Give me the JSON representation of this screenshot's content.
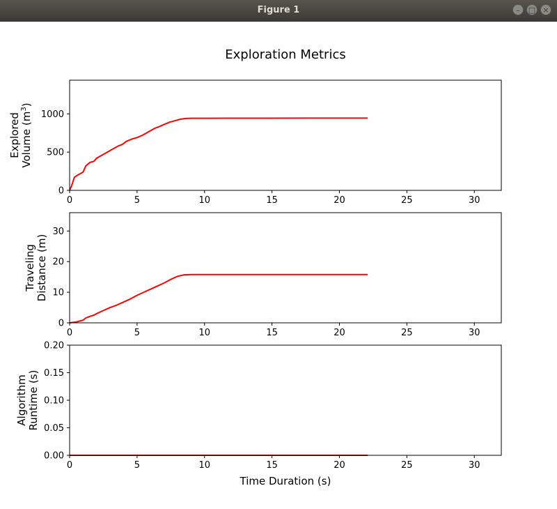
{
  "window": {
    "title": "Figure 1",
    "buttons": {
      "minimize": "–",
      "maximize": "□",
      "close": "×"
    }
  },
  "figure": {
    "suptitle": "Exploration Metrics",
    "line_color": "#ff0000"
  },
  "chart_data": [
    {
      "type": "line",
      "title": "",
      "xlabel": "",
      "ylabel_lines": [
        "Explored",
        "Volume (m"
      ],
      "ylabel_superscript": "3",
      "ylabel_suffix": ")",
      "xlim": [
        0,
        32
      ],
      "ylim": [
        0,
        1440
      ],
      "xticks": [
        0,
        5,
        10,
        15,
        20,
        25,
        30
      ],
      "yticks": [
        0,
        500,
        1000
      ],
      "grid": false,
      "series": [
        {
          "x": [
            0,
            0.15,
            0.35,
            0.6,
            1.0,
            1.2,
            1.5,
            1.8,
            2.0,
            2.4,
            2.8,
            3.2,
            3.6,
            3.9,
            4.2,
            4.6,
            5.0,
            5.4,
            5.7,
            6.0,
            6.3,
            6.6,
            7.0,
            7.4,
            7.8,
            8.2,
            8.6,
            9.0,
            10,
            12,
            15,
            18,
            20,
            22.1
          ],
          "y": [
            0,
            60,
            170,
            200,
            240,
            320,
            365,
            380,
            420,
            460,
            500,
            540,
            580,
            600,
            640,
            670,
            690,
            720,
            750,
            780,
            810,
            830,
            860,
            890,
            910,
            930,
            940,
            942,
            942,
            943,
            943,
            944,
            944,
            944
          ]
        }
      ]
    },
    {
      "type": "line",
      "title": "",
      "xlabel": "",
      "ylabel_lines": [
        "Traveling",
        "Distance (m)"
      ],
      "xlim": [
        0,
        32
      ],
      "ylim": [
        0,
        36
      ],
      "xticks": [
        0,
        5,
        10,
        15,
        20,
        25,
        30
      ],
      "yticks": [
        0,
        10,
        20,
        30
      ],
      "grid": false,
      "series": [
        {
          "x": [
            0,
            0.5,
            1.0,
            1.2,
            1.5,
            1.8,
            2.0,
            2.5,
            3.0,
            3.5,
            4.0,
            4.5,
            5.0,
            5.5,
            6.0,
            6.5,
            7.0,
            7.5,
            8.0,
            8.5,
            9.0,
            12,
            15,
            18,
            22.1
          ],
          "y": [
            0,
            0.3,
            0.9,
            1.6,
            2.1,
            2.5,
            3.0,
            4.0,
            5.0,
            5.8,
            6.8,
            7.8,
            9.0,
            10.0,
            11.0,
            12.0,
            13.0,
            14.2,
            15.2,
            15.7,
            15.8,
            15.8,
            15.8,
            15.8,
            15.8
          ]
        }
      ]
    },
    {
      "type": "line",
      "title": "",
      "xlabel": "Time Duration (s)",
      "ylabel_lines": [
        "Algorithm",
        "Runtime (s)"
      ],
      "xlim": [
        0,
        32
      ],
      "ylim": [
        0,
        0.2
      ],
      "xticks": [
        0,
        5,
        10,
        15,
        20,
        25,
        30
      ],
      "yticks": [
        "0.00",
        "0.05",
        "0.10",
        "0.15",
        "0.20"
      ],
      "grid": false,
      "series": [
        {
          "x": [
            0,
            5,
            10,
            15,
            20,
            22.1
          ],
          "y": [
            0,
            0,
            0,
            0,
            0,
            0
          ]
        }
      ]
    }
  ]
}
